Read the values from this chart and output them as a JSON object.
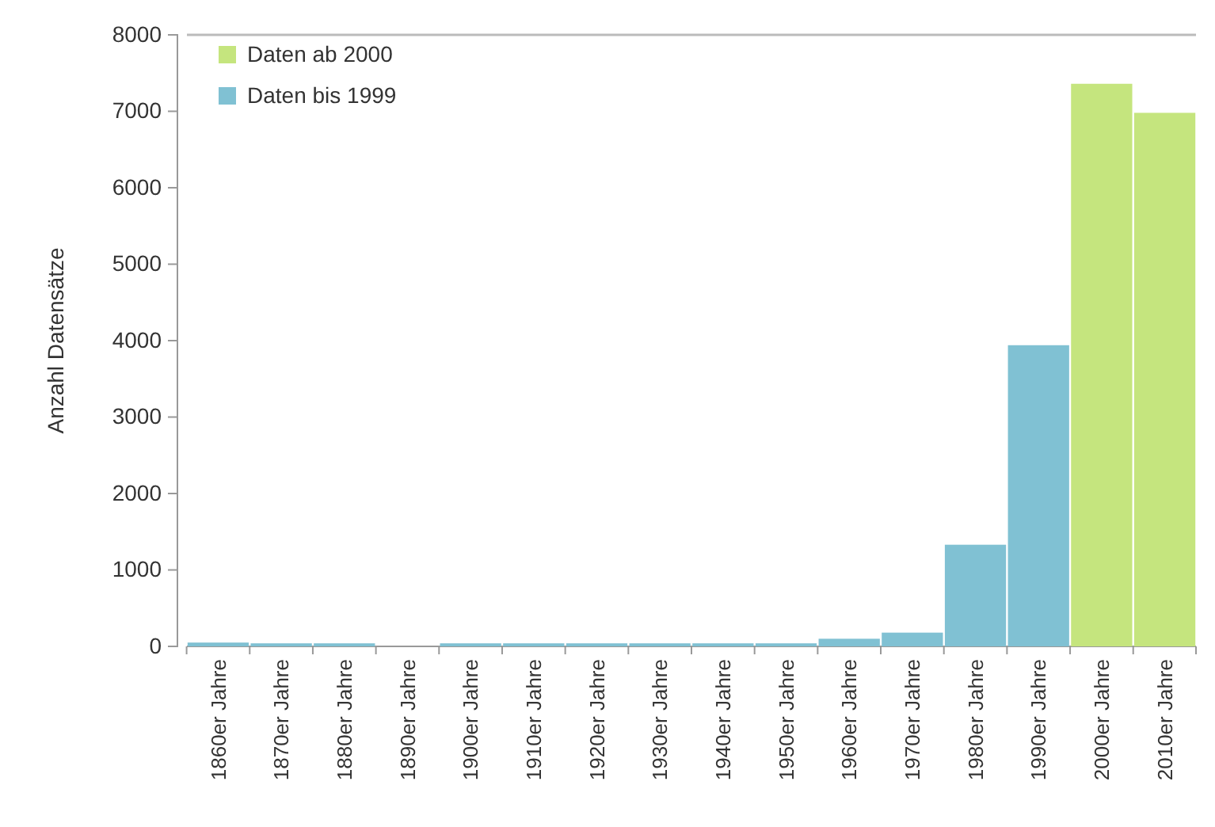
{
  "chart_data": {
    "type": "bar",
    "ylabel": "Anzahl Datensätze",
    "categories": [
      "1860er Jahre",
      "1870er Jahre",
      "1880er Jahre",
      "1890er Jahre",
      "1900er Jahre",
      "1910er Jahre",
      "1920er Jahre",
      "1930er Jahre",
      "1940er Jahre",
      "1950er Jahre",
      "1960er Jahre",
      "1970er Jahre",
      "1980er Jahre",
      "1990er Jahre",
      "2000er Jahre",
      "2010er Jahre"
    ],
    "series": [
      {
        "name": "Daten ab 2000",
        "color": "#c5e57e",
        "values": [
          null,
          null,
          null,
          null,
          null,
          null,
          null,
          null,
          null,
          null,
          null,
          null,
          null,
          null,
          7360,
          6980
        ]
      },
      {
        "name": "Daten bis 1999",
        "color": "#80c1d3",
        "values": [
          50,
          40,
          40,
          0,
          40,
          40,
          40,
          40,
          40,
          40,
          100,
          180,
          1330,
          3940,
          null,
          null
        ]
      }
    ],
    "ylim": [
      0,
      8000
    ],
    "yticks": [
      0,
      1000,
      2000,
      3000,
      4000,
      5000,
      6000,
      7000,
      8000
    ],
    "grid": false,
    "legend": "top left"
  }
}
